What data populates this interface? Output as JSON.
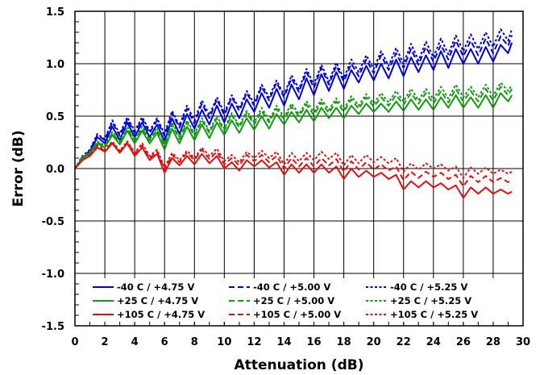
{
  "chart_data": {
    "type": "line",
    "title": "",
    "xlabel": "Attenuation (dB)",
    "ylabel": "Error (dB)",
    "xlim": [
      0,
      30
    ],
    "ylim": [
      -1.5,
      1.5
    ],
    "xticks": [
      "0",
      "2",
      "4",
      "6",
      "8",
      "10",
      "12",
      "14",
      "16",
      "18",
      "20",
      "22",
      "24",
      "26",
      "28",
      "30"
    ],
    "yticks": [
      "-1.5",
      "-1.0",
      "-0.5",
      "0.0",
      "0.5",
      "1.0",
      "1.5"
    ],
    "grid": true,
    "legend_position": "bottom",
    "colors": {
      "-40 C": "#0000dd",
      "+25 C": "#109a10",
      "+105 C": "#e01010"
    },
    "line_styles": {
      "+4.75 V": "solid",
      "+5.00 V": "dashed",
      "+5.25 V": "dotted"
    },
    "x": [
      0,
      0.5,
      1,
      1.5,
      2,
      2.5,
      3,
      3.5,
      4,
      4.5,
      5,
      5.5,
      6,
      6.5,
      7,
      7.5,
      8,
      8.5,
      9,
      9.5,
      10,
      10.5,
      11,
      11.5,
      12,
      12.5,
      13,
      13.5,
      14,
      14.5,
      15,
      15.5,
      16,
      16.5,
      17,
      17.5,
      18,
      18.5,
      19,
      19.5,
      20,
      20.5,
      21,
      21.5,
      22,
      22.5,
      23,
      23.5,
      24,
      24.5,
      25,
      25.5,
      26,
      26.5,
      27,
      27.5,
      28,
      28.5,
      29,
      29.25
    ],
    "series": [
      {
        "name": "-40 C / +4.75 V",
        "color": "#0000dd",
        "dash": "solid",
        "values": [
          0.0,
          0.1,
          0.16,
          0.3,
          0.24,
          0.4,
          0.27,
          0.44,
          0.3,
          0.44,
          0.3,
          0.42,
          0.26,
          0.48,
          0.33,
          0.52,
          0.38,
          0.56,
          0.42,
          0.6,
          0.44,
          0.62,
          0.48,
          0.66,
          0.54,
          0.72,
          0.58,
          0.76,
          0.6,
          0.8,
          0.66,
          0.86,
          0.7,
          0.9,
          0.74,
          0.92,
          0.76,
          0.94,
          0.82,
          0.98,
          0.84,
          1.0,
          0.86,
          1.04,
          0.88,
          1.06,
          0.92,
          1.08,
          0.94,
          1.12,
          0.96,
          1.14,
          1.0,
          1.14,
          1.0,
          1.16,
          1.02,
          1.18,
          1.1,
          1.2
        ]
      },
      {
        "name": "-40 C / +5.00 V",
        "color": "#0000dd",
        "dash": "dashed",
        "values": [
          0.0,
          0.11,
          0.17,
          0.32,
          0.27,
          0.44,
          0.31,
          0.47,
          0.34,
          0.47,
          0.34,
          0.46,
          0.31,
          0.53,
          0.39,
          0.57,
          0.43,
          0.62,
          0.48,
          0.66,
          0.51,
          0.68,
          0.55,
          0.72,
          0.6,
          0.78,
          0.65,
          0.82,
          0.68,
          0.86,
          0.73,
          0.92,
          0.77,
          0.96,
          0.8,
          0.98,
          0.83,
          1.0,
          0.88,
          1.04,
          0.91,
          1.08,
          0.94,
          1.1,
          0.96,
          1.14,
          0.99,
          1.16,
          1.02,
          1.18,
          1.04,
          1.22,
          1.07,
          1.22,
          1.08,
          1.24,
          1.1,
          1.26,
          1.17,
          1.27
        ]
      },
      {
        "name": "-40 C / +5.25 V",
        "color": "#0000dd",
        "dash": "dotted",
        "values": [
          0.0,
          0.12,
          0.18,
          0.33,
          0.28,
          0.46,
          0.33,
          0.49,
          0.36,
          0.49,
          0.36,
          0.48,
          0.33,
          0.55,
          0.41,
          0.6,
          0.46,
          0.65,
          0.51,
          0.68,
          0.53,
          0.7,
          0.57,
          0.74,
          0.62,
          0.8,
          0.68,
          0.84,
          0.7,
          0.89,
          0.76,
          0.95,
          0.8,
          0.99,
          0.83,
          1.01,
          0.86,
          1.04,
          0.92,
          1.08,
          0.95,
          1.12,
          0.98,
          1.15,
          1.0,
          1.19,
          1.03,
          1.21,
          1.06,
          1.24,
          1.09,
          1.27,
          1.12,
          1.28,
          1.14,
          1.3,
          1.16,
          1.33,
          1.22,
          1.33
        ]
      },
      {
        "name": "+25 C / +4.75 V",
        "color": "#109a10",
        "dash": "solid",
        "values": [
          0.0,
          0.1,
          0.14,
          0.24,
          0.2,
          0.32,
          0.23,
          0.36,
          0.24,
          0.36,
          0.24,
          0.34,
          0.18,
          0.38,
          0.24,
          0.4,
          0.27,
          0.42,
          0.29,
          0.44,
          0.32,
          0.46,
          0.34,
          0.48,
          0.37,
          0.5,
          0.38,
          0.52,
          0.42,
          0.54,
          0.44,
          0.56,
          0.45,
          0.58,
          0.48,
          0.58,
          0.48,
          0.6,
          0.52,
          0.62,
          0.54,
          0.62,
          0.54,
          0.64,
          0.55,
          0.66,
          0.56,
          0.66,
          0.56,
          0.68,
          0.58,
          0.7,
          0.58,
          0.68,
          0.58,
          0.7,
          0.58,
          0.72,
          0.64,
          0.7
        ]
      },
      {
        "name": "+25 C / +5.00 V",
        "color": "#109a10",
        "dash": "dashed",
        "values": [
          0.0,
          0.1,
          0.15,
          0.25,
          0.21,
          0.34,
          0.25,
          0.38,
          0.27,
          0.38,
          0.27,
          0.37,
          0.22,
          0.42,
          0.28,
          0.44,
          0.31,
          0.46,
          0.34,
          0.48,
          0.36,
          0.51,
          0.39,
          0.53,
          0.42,
          0.55,
          0.44,
          0.57,
          0.47,
          0.59,
          0.5,
          0.61,
          0.51,
          0.63,
          0.53,
          0.64,
          0.54,
          0.66,
          0.57,
          0.68,
          0.59,
          0.68,
          0.6,
          0.7,
          0.61,
          0.72,
          0.62,
          0.72,
          0.62,
          0.74,
          0.63,
          0.76,
          0.64,
          0.74,
          0.64,
          0.76,
          0.65,
          0.78,
          0.7,
          0.76
        ]
      },
      {
        "name": "+25 C / +5.25 V",
        "color": "#109a10",
        "dash": "dotted",
        "values": [
          0.0,
          0.11,
          0.16,
          0.26,
          0.22,
          0.35,
          0.26,
          0.4,
          0.28,
          0.4,
          0.28,
          0.39,
          0.24,
          0.44,
          0.3,
          0.46,
          0.33,
          0.48,
          0.36,
          0.5,
          0.38,
          0.53,
          0.41,
          0.55,
          0.44,
          0.58,
          0.46,
          0.6,
          0.49,
          0.62,
          0.52,
          0.64,
          0.54,
          0.66,
          0.56,
          0.67,
          0.57,
          0.69,
          0.6,
          0.71,
          0.62,
          0.72,
          0.63,
          0.74,
          0.64,
          0.76,
          0.65,
          0.76,
          0.66,
          0.78,
          0.67,
          0.8,
          0.68,
          0.78,
          0.68,
          0.8,
          0.69,
          0.82,
          0.74,
          0.8
        ]
      },
      {
        "name": "+105 C / +4.75 V",
        "color": "#e01010",
        "dash": "solid",
        "values": [
          0.0,
          0.08,
          0.12,
          0.2,
          0.16,
          0.24,
          0.15,
          0.24,
          0.12,
          0.2,
          0.08,
          0.14,
          -0.04,
          0.1,
          0.03,
          0.12,
          0.04,
          0.14,
          0.05,
          0.12,
          0.0,
          0.06,
          -0.02,
          0.08,
          0.02,
          0.08,
          0.01,
          0.06,
          -0.06,
          0.04,
          -0.04,
          0.04,
          -0.04,
          0.04,
          -0.04,
          0.02,
          -0.1,
          0.0,
          -0.08,
          -0.02,
          -0.08,
          -0.04,
          -0.1,
          -0.06,
          -0.2,
          -0.12,
          -0.18,
          -0.12,
          -0.18,
          -0.14,
          -0.2,
          -0.16,
          -0.28,
          -0.18,
          -0.24,
          -0.18,
          -0.24,
          -0.2,
          -0.24,
          -0.22
        ]
      },
      {
        "name": "+105 C / +5.00 V",
        "color": "#e01010",
        "dash": "dashed",
        "values": [
          0.0,
          0.08,
          0.13,
          0.21,
          0.17,
          0.25,
          0.16,
          0.25,
          0.14,
          0.22,
          0.1,
          0.16,
          -0.01,
          0.13,
          0.06,
          0.15,
          0.08,
          0.18,
          0.09,
          0.16,
          0.04,
          0.1,
          0.03,
          0.13,
          0.07,
          0.13,
          0.06,
          0.12,
          0.0,
          0.1,
          0.02,
          0.1,
          0.02,
          0.1,
          0.03,
          0.09,
          -0.03,
          0.07,
          -0.01,
          0.06,
          -0.01,
          0.04,
          -0.02,
          0.02,
          -0.11,
          -0.03,
          -0.09,
          -0.03,
          -0.08,
          -0.04,
          -0.1,
          -0.06,
          -0.17,
          -0.07,
          -0.13,
          -0.07,
          -0.13,
          -0.09,
          -0.13,
          -0.11
        ]
      },
      {
        "name": "+105 C / +5.25 V",
        "color": "#e01010",
        "dash": "dotted",
        "values": [
          0.0,
          0.08,
          0.13,
          0.22,
          0.18,
          0.26,
          0.17,
          0.26,
          0.15,
          0.24,
          0.12,
          0.18,
          0.01,
          0.15,
          0.08,
          0.17,
          0.1,
          0.2,
          0.12,
          0.19,
          0.07,
          0.13,
          0.06,
          0.16,
          0.1,
          0.17,
          0.1,
          0.16,
          0.04,
          0.15,
          0.07,
          0.15,
          0.08,
          0.16,
          0.09,
          0.15,
          0.03,
          0.13,
          0.05,
          0.13,
          0.06,
          0.11,
          0.05,
          0.1,
          -0.03,
          0.05,
          -0.01,
          0.05,
          0.0,
          0.04,
          -0.02,
          0.02,
          -0.09,
          0.01,
          -0.05,
          0.01,
          -0.05,
          -0.01,
          -0.05,
          -0.03
        ]
      }
    ]
  }
}
